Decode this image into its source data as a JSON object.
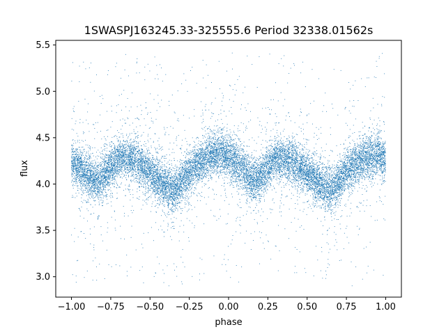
{
  "chart_data": {
    "type": "scatter",
    "title": "1SWASPJ163245.33-325555.6 Period 32338.01562s",
    "xlabel": "phase",
    "ylabel": "flux",
    "xlim": [
      -1.1,
      1.1
    ],
    "ylim": [
      2.78,
      5.55
    ],
    "x_ticks": [
      -1.0,
      -0.75,
      -0.5,
      -0.25,
      0.0,
      0.25,
      0.5,
      0.75,
      1.0
    ],
    "x_tick_labels": [
      "−1.00",
      "−0.75",
      "−0.50",
      "−0.25",
      "0.00",
      "0.25",
      "0.50",
      "0.75",
      "1.00"
    ],
    "y_ticks": [
      3.0,
      3.5,
      4.0,
      4.5,
      5.0,
      5.5
    ],
    "y_tick_labels": [
      "3.0",
      "3.5",
      "4.0",
      "4.5",
      "5.0",
      "5.5"
    ],
    "grid": false,
    "point_color": "#1f77b4",
    "series": [
      {
        "x_range": [
          -1.0,
          1.0
        ],
        "light_curve": {
          "phase": [
            -1.0,
            -0.9,
            -0.85,
            -0.8,
            -0.7,
            -0.6,
            -0.5,
            -0.4,
            -0.35,
            -0.3,
            -0.2,
            -0.1,
            -0.05,
            0.0,
            0.1,
            0.15,
            0.2,
            0.3,
            0.4,
            0.5,
            0.6,
            0.65,
            0.7,
            0.8,
            0.9,
            0.95,
            1.0
          ],
          "median_flux": [
            4.22,
            4.12,
            4.02,
            4.08,
            4.28,
            4.26,
            4.12,
            3.98,
            3.92,
            4.02,
            4.22,
            4.32,
            4.34,
            4.3,
            4.15,
            4.02,
            4.08,
            4.27,
            4.25,
            4.12,
            3.98,
            3.93,
            4.02,
            4.22,
            4.3,
            4.32,
            4.25
          ]
        },
        "n_points": 16000
      }
    ]
  }
}
